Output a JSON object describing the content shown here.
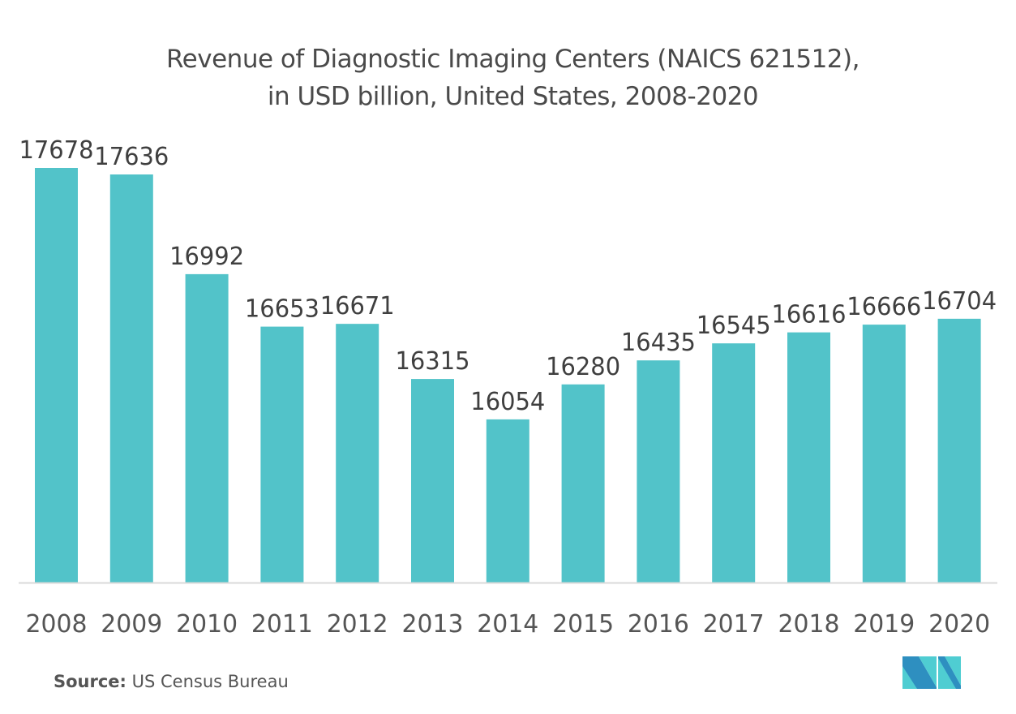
{
  "chart_data": {
    "type": "bar",
    "title": "Revenue of Diagnostic Imaging Centers (NAICS 621512), in USD billion, United States, 2008-2020",
    "title_lines": [
      "Revenue of Diagnostic Imaging Centers (NAICS 621512),",
      "in USD billion, United States, 2008-2020"
    ],
    "categories": [
      "2008",
      "2009",
      "2010",
      "2011",
      "2012",
      "2013",
      "2014",
      "2015",
      "2016",
      "2017",
      "2018",
      "2019",
      "2020"
    ],
    "values": [
      17678,
      17636,
      16992,
      16653,
      16671,
      16315,
      16054,
      16280,
      16435,
      16545,
      16616,
      16666,
      16704
    ],
    "xlabel": "",
    "ylabel": "",
    "ylim": [
      15000,
      17678
    ],
    "grid": false,
    "legend": "none",
    "bar_color": "#52c3c9",
    "data_labels": true
  },
  "footer": {
    "source_label": "Source:",
    "source_text": " US Census Bureau"
  },
  "logo": {
    "name": "mordor-intelligence-logo",
    "colors": [
      "#2e8fc0",
      "#4fcdd2"
    ]
  }
}
